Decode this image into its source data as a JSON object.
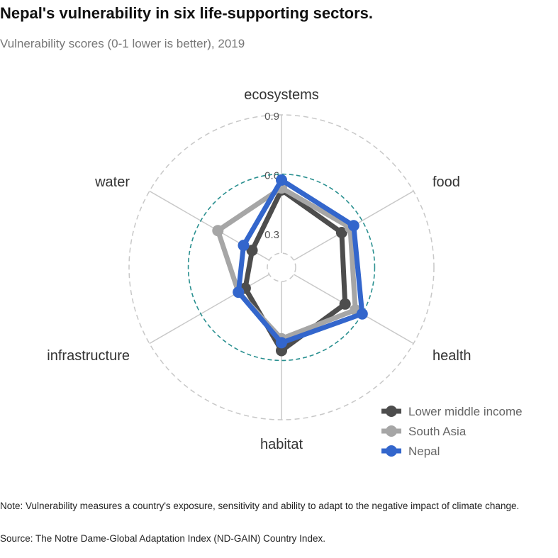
{
  "title": "Nepal's vulnerability in six life-supporting sectors.",
  "subtitle": "Vulnerability scores (0-1 lower is better), 2019",
  "note": "Note: Vulnerability measures a country's exposure, sensitivity and ability to adapt to the negative impact of climate change.",
  "source": "Source: The Notre Dame-Global Adaptation Index (ND-GAIN) Country Index.",
  "chart_data": {
    "type": "radar",
    "categories": [
      "ecosystems",
      "food",
      "health",
      "habitat",
      "infrastructure",
      "water"
    ],
    "radial_ticks": [
      "0.3",
      "0.6",
      "0.9"
    ],
    "radial_tick_values": [
      0.3,
      0.6,
      0.9
    ],
    "radial_range": [
      0.2,
      0.9
    ],
    "legend_position": "bottom-right",
    "series": [
      {
        "name": "Lower middle income",
        "color": "#4d4d4d",
        "values": [
          0.52,
          0.48,
          0.5,
          0.55,
          0.34,
          0.3
        ]
      },
      {
        "name": "South Asia",
        "color": "#a6a6a6",
        "values": [
          0.53,
          0.53,
          0.56,
          0.49,
          0.38,
          0.5
        ]
      },
      {
        "name": "Nepal",
        "color": "#3366cc",
        "values": [
          0.57,
          0.55,
          0.6,
          0.51,
          0.38,
          0.35
        ]
      }
    ]
  }
}
